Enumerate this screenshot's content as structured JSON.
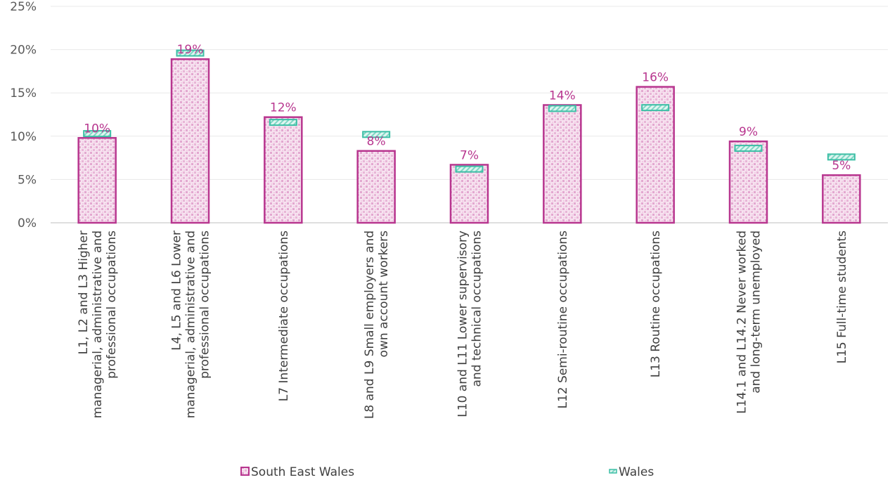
{
  "chart_data": {
    "type": "bar",
    "title": "",
    "xlabel": "",
    "ylabel": "",
    "ylim": [
      0,
      25
    ],
    "yticks": [
      "0%",
      "5%",
      "10%",
      "15%",
      "20%",
      "25%"
    ],
    "grid": true,
    "legend_position": "bottom",
    "categories": [
      [
        "L1, L2 and L3 Higher",
        "managerial, administrative and",
        "professional occupations"
      ],
      [
        "L4, L5 and L6 Lower",
        "managerial, administrative and",
        "professional occupations"
      ],
      [
        "L7 Intermediate occupations"
      ],
      [
        "L8 and L9 Small employers and",
        "own account workers"
      ],
      [
        "L10 and L11 Lower supervisory",
        "and technical occupations"
      ],
      [
        "L12 Semi-routine occupations"
      ],
      [
        "L13 Routine occupations"
      ],
      [
        "L14.1 and L14.2 Never worked",
        "and long-term unemployed"
      ],
      [
        "L15 Full-time students"
      ]
    ],
    "series": [
      {
        "name": "South East Wales",
        "type": "bar",
        "color": "#b8368f",
        "values": [
          9.8,
          18.9,
          12.2,
          8.3,
          6.7,
          13.6,
          15.7,
          9.4,
          5.5
        ],
        "labels": [
          "10%",
          "19%",
          "12%",
          "8%",
          "7%",
          "14%",
          "16%",
          "9%",
          "5%"
        ]
      },
      {
        "name": "Wales",
        "type": "marker",
        "color": "#3dbfa6",
        "values": [
          10.3,
          19.6,
          11.6,
          10.2,
          6.2,
          13.2,
          13.3,
          8.6,
          7.6
        ]
      }
    ]
  }
}
